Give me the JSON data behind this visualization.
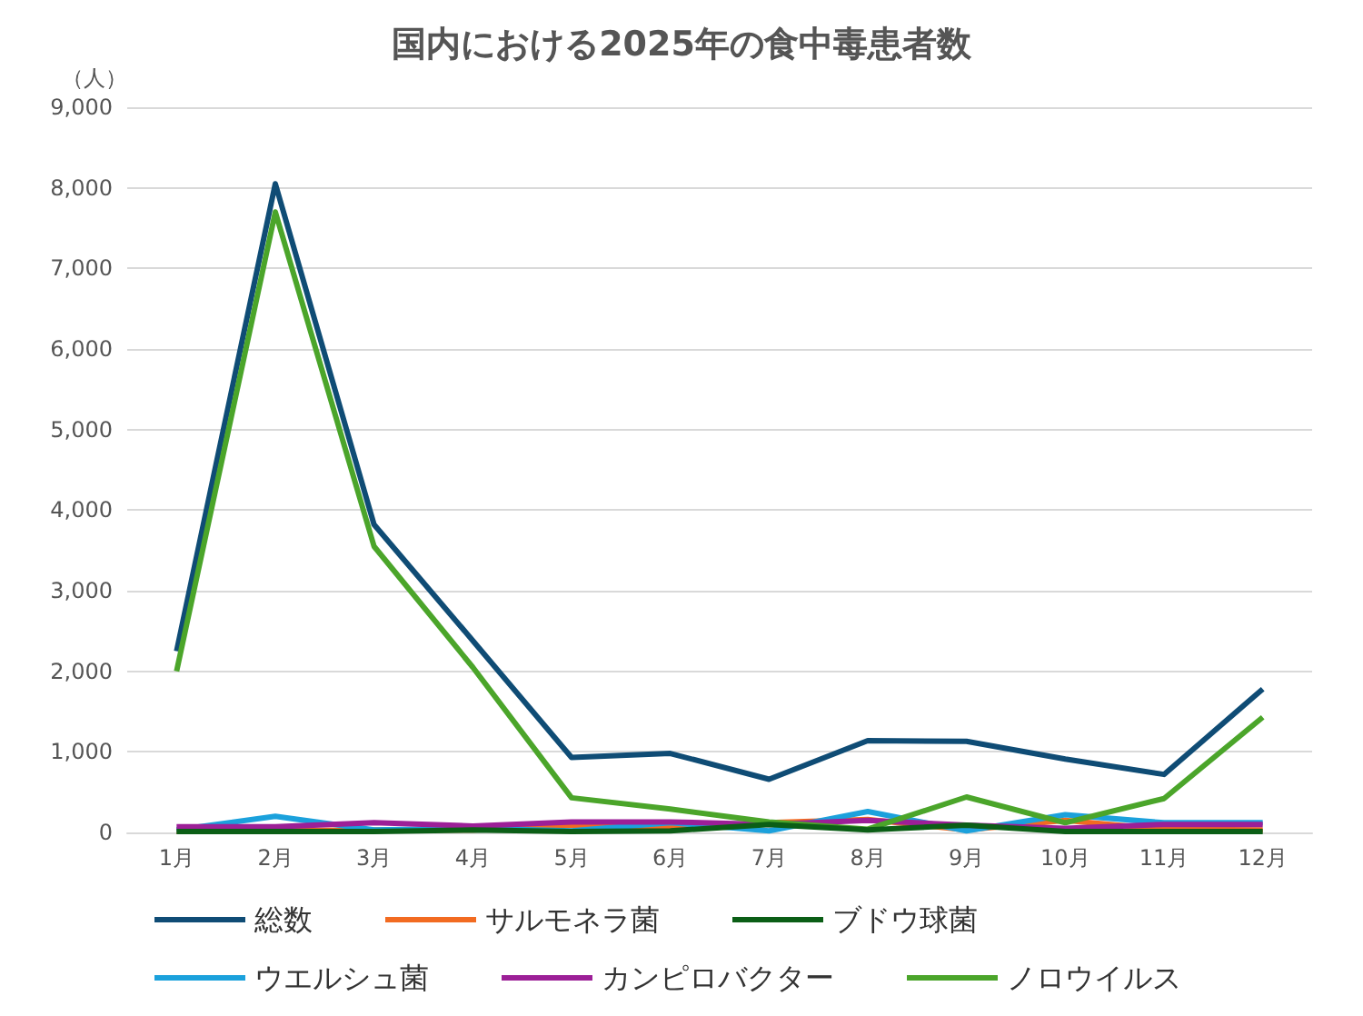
{
  "chart_data": {
    "type": "line",
    "title": "国内における2025年の食中毒患者数",
    "ylabel": "（人）",
    "categories": [
      "1月",
      "2月",
      "3月",
      "4月",
      "5月",
      "6月",
      "7月",
      "8月",
      "9月",
      "10月",
      "11月",
      "12月"
    ],
    "series": [
      {
        "name": "総数",
        "color": "#0f4c75",
        "values": [
          2250,
          8050,
          3820,
          2380,
          930,
          980,
          660,
          1140,
          1130,
          910,
          720,
          1780
        ]
      },
      {
        "name": "サルモネラ菌",
        "color": "#f26b21",
        "values": [
          10,
          20,
          30,
          30,
          90,
          60,
          120,
          160,
          30,
          150,
          40,
          30
        ]
      },
      {
        "name": "ブドウ球菌",
        "color": "#0b5e16",
        "values": [
          10,
          10,
          10,
          30,
          10,
          20,
          100,
          30,
          90,
          10,
          10,
          10
        ]
      },
      {
        "name": "ウエルシュ菌",
        "color": "#1ba1dc",
        "values": [
          30,
          200,
          30,
          50,
          20,
          120,
          20,
          260,
          20,
          220,
          120,
          120
        ]
      },
      {
        "name": "カンピロバクター",
        "color": "#9c1f97",
        "values": [
          70,
          70,
          120,
          80,
          130,
          130,
          100,
          150,
          90,
          50,
          100,
          100
        ]
      },
      {
        "name": "ノロウイルス",
        "color": "#4ba52a",
        "values": [
          2000,
          7700,
          3550,
          2050,
          430,
          290,
          130,
          40,
          440,
          120,
          420,
          1430
        ]
      }
    ],
    "ylim": [
      0,
      9000
    ],
    "yticks": [
      0,
      {
        "value": 1000,
        "label": "1,000"
      },
      {
        "value": 2000,
        "label": "2,000"
      },
      {
        "value": 3000,
        "label": "3,000"
      },
      {
        "value": 4000,
        "label": "4,000"
      },
      {
        "value": 5000,
        "label": "5,000"
      },
      {
        "value": 6000,
        "label": "6,000"
      },
      {
        "value": 7000,
        "label": "7,000"
      },
      {
        "value": 8000,
        "label": "8,000"
      },
      {
        "value": 9000,
        "label": "9,000"
      }
    ],
    "grid": "y",
    "legend": "bottom",
    "marker": "none",
    "line_style": "solid"
  }
}
